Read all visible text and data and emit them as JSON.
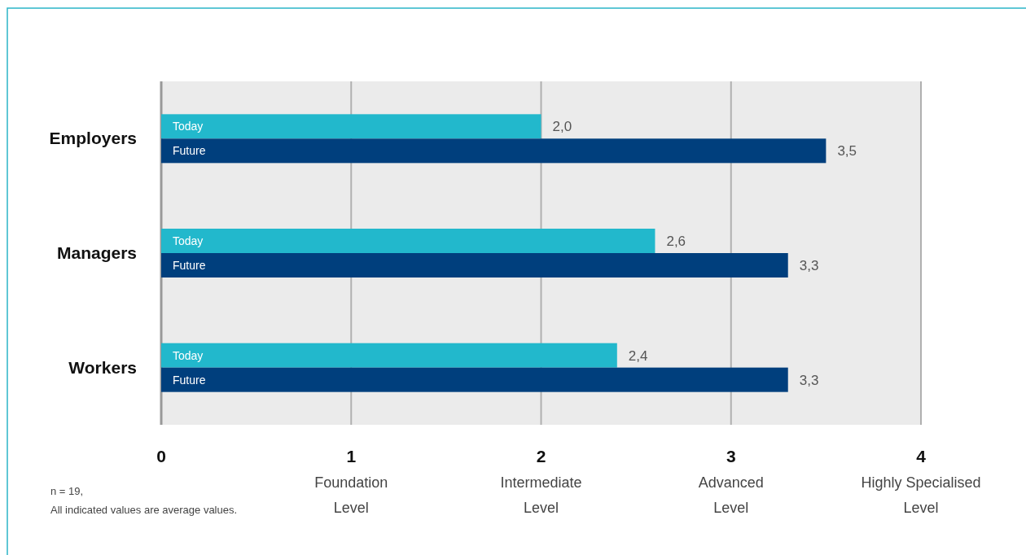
{
  "chart_data": {
    "type": "bar",
    "orientation": "horizontal",
    "categories": [
      "Employers",
      "Managers",
      "Workers"
    ],
    "series": [
      {
        "name": "Today",
        "color": "#22b8cc",
        "values": [
          2.0,
          2.6,
          2.4
        ],
        "value_labels": [
          "2,0",
          "2,6",
          "2,4"
        ]
      },
      {
        "name": "Future",
        "color": "#003f7d",
        "values": [
          3.5,
          3.3,
          3.3
        ],
        "value_labels": [
          "3,5",
          "3,3",
          "3,3"
        ]
      }
    ],
    "xlim": [
      0,
      4
    ],
    "xticks": [
      0,
      {
        "value": 1,
        "label": "1\nFoundation\nLevel"
      },
      {
        "value": 2,
        "label": "2\nIntermediate\nLevel"
      },
      {
        "value": 3,
        "label": "3\nAdvanced\nLevel"
      },
      {
        "value": 4,
        "label": "4\nHighly Specialised\nLevel"
      }
    ],
    "grid": "x",
    "annotations": [
      "n = 19,",
      "All indicated values are average values."
    ]
  }
}
